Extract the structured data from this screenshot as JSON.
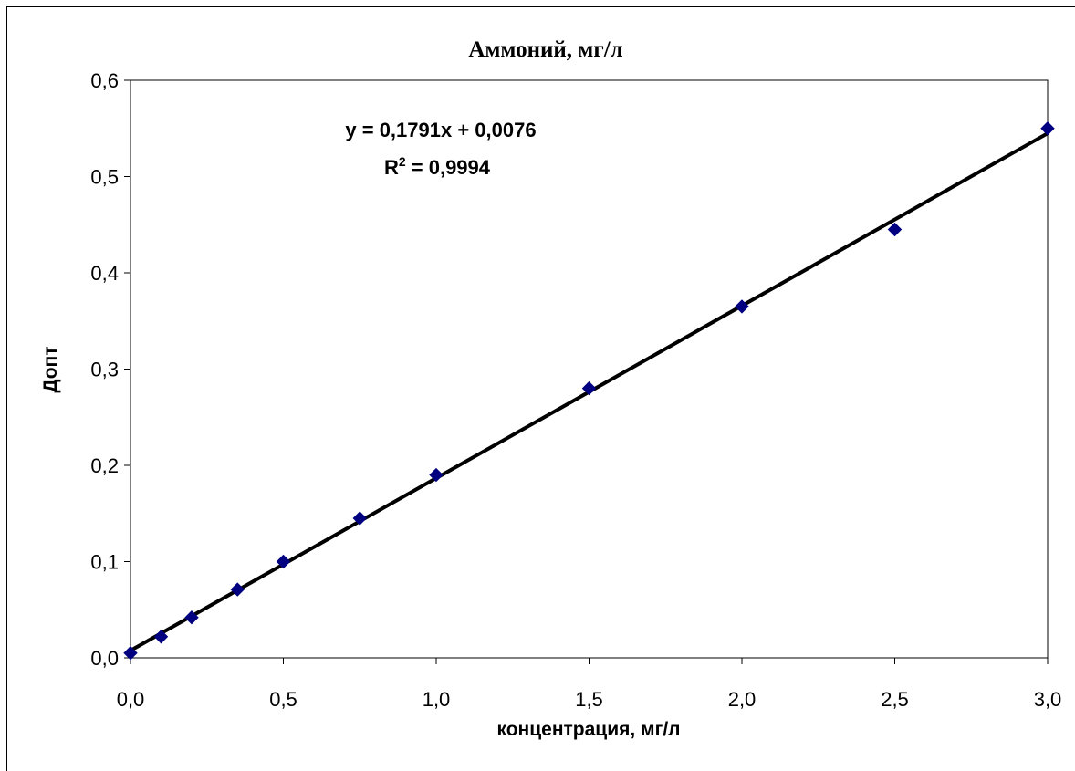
{
  "chart_data": {
    "type": "scatter",
    "title": "Аммоний, мг/л",
    "xlabel": "концентрация, мг/л",
    "ylabel": "Допт",
    "xlim": [
      0,
      3
    ],
    "ylim": [
      0,
      0.6
    ],
    "x_ticks": [
      "0,0",
      "0,5",
      "1,0",
      "1,5",
      "2,0",
      "2,5",
      "3,0"
    ],
    "y_ticks": [
      "0,0",
      "0,1",
      "0,2",
      "0,3",
      "0,4",
      "0,5",
      "0,6"
    ],
    "grid": false,
    "legend": "none",
    "series": [
      {
        "marker": "diamond",
        "color": "#000080",
        "points": [
          {
            "x": 0.0,
            "y": 0.005
          },
          {
            "x": 0.1,
            "y": 0.022
          },
          {
            "x": 0.2,
            "y": 0.042
          },
          {
            "x": 0.35,
            "y": 0.071
          },
          {
            "x": 0.5,
            "y": 0.1
          },
          {
            "x": 0.75,
            "y": 0.145
          },
          {
            "x": 1.0,
            "y": 0.19
          },
          {
            "x": 1.5,
            "y": 0.28
          },
          {
            "x": 2.0,
            "y": 0.365
          },
          {
            "x": 2.5,
            "y": 0.445
          },
          {
            "x": 3.0,
            "y": 0.55
          }
        ]
      }
    ],
    "trendline": {
      "type": "linear",
      "slope": 0.1791,
      "intercept": 0.0076,
      "color": "#000000",
      "equation_text": "y = 0,1791x + 0,0076",
      "r2_prefix": "R",
      "r2_sup": "2",
      "r2_suffix": " = 0,9994"
    }
  }
}
